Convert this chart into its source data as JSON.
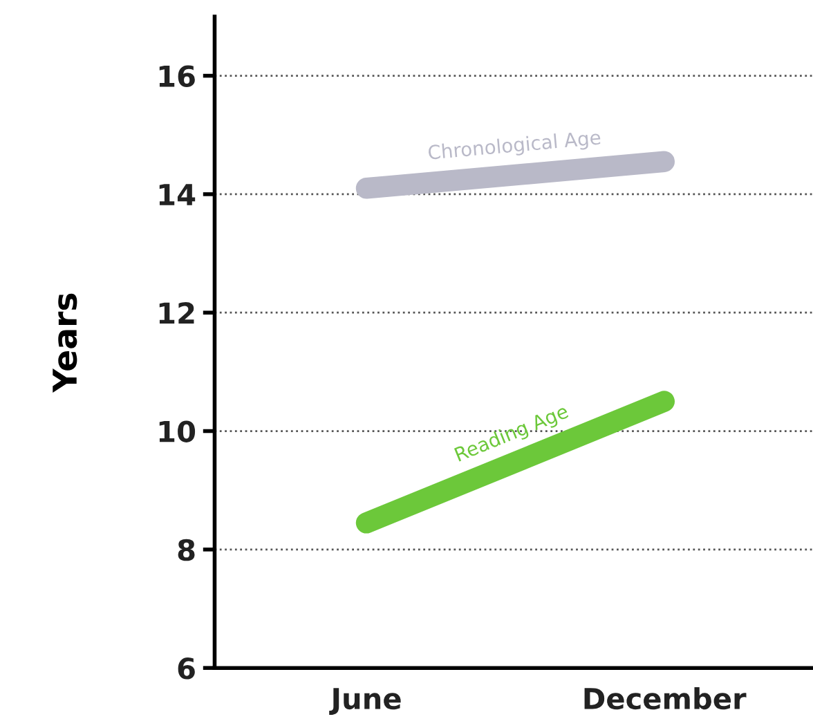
{
  "chart_data": {
    "type": "line",
    "ylabel": "Years",
    "categories": [
      "June",
      "December"
    ],
    "series": [
      {
        "name": "Chronological Age",
        "color": "#b9b9c8",
        "values": [
          14.1,
          14.55
        ]
      },
      {
        "name": "Reading Age",
        "color": "#6cc83a",
        "values": [
          8.45,
          10.5
        ]
      }
    ],
    "ylim": [
      6,
      17
    ],
    "yticks": [
      6,
      8,
      10,
      12,
      14,
      16
    ],
    "grid": "y",
    "legend": false,
    "line_style": "solid"
  }
}
